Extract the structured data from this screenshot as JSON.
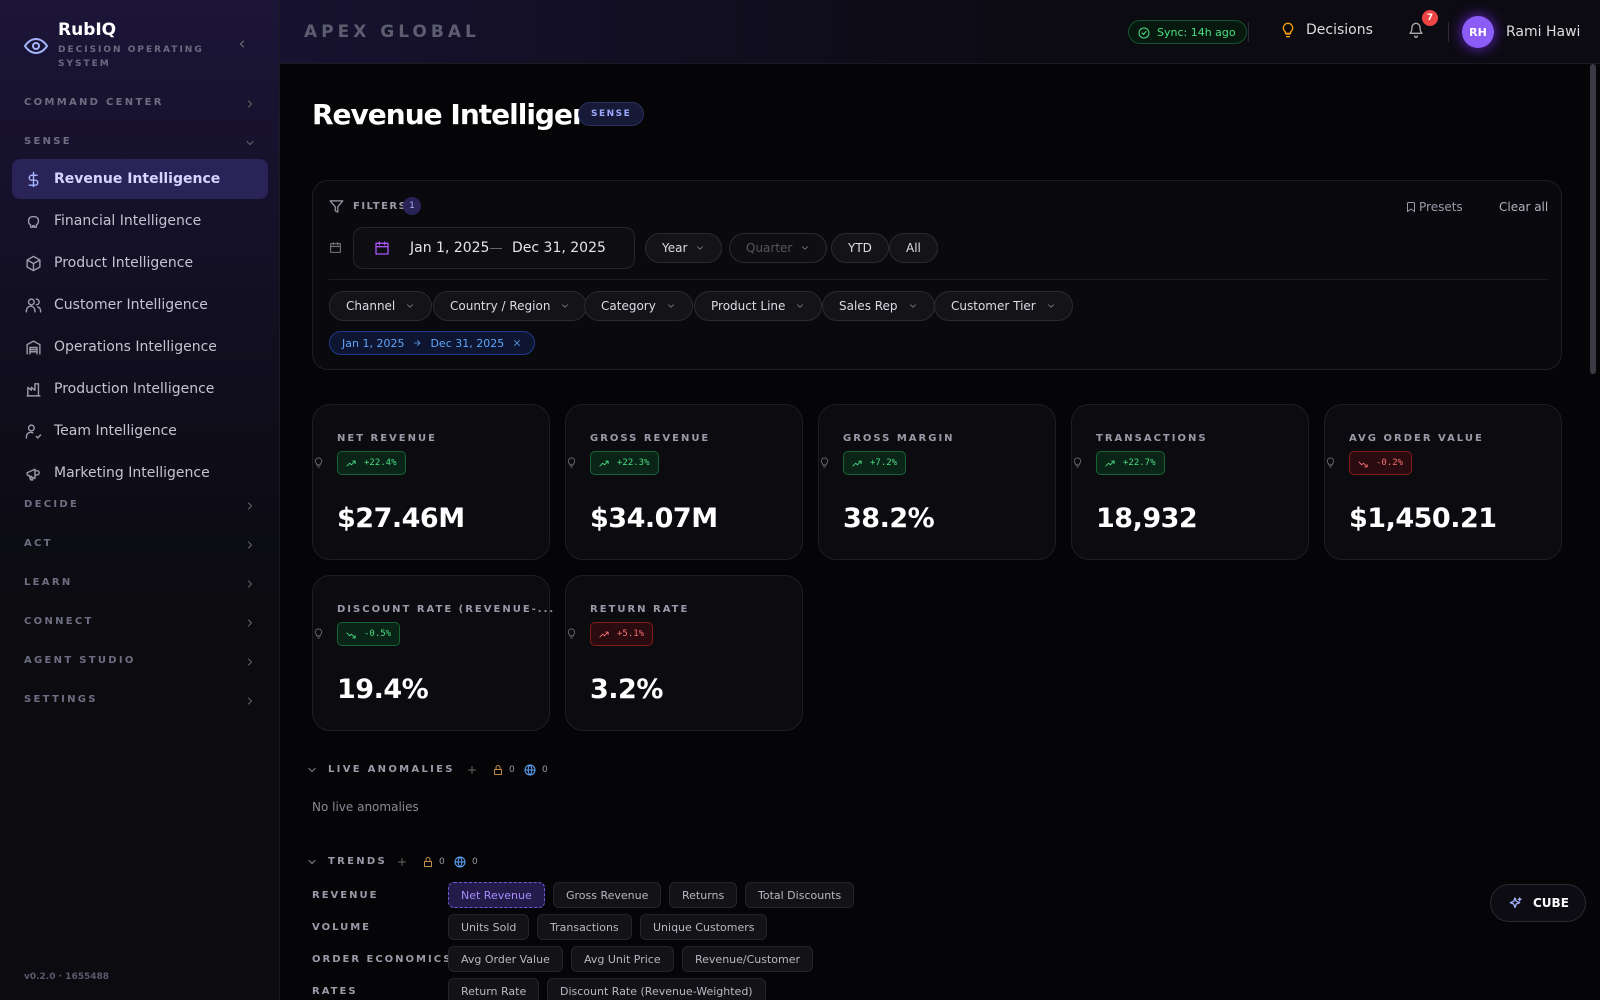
{
  "sidebar": {
    "brand": "RubIQ",
    "tagline": "DECISION OPERATING SYSTEM",
    "groups": [
      {
        "label": "COMMAND CENTER"
      },
      {
        "label": "SENSE",
        "active": 0,
        "items": [
          "Revenue Intelligence",
          "Financial Intelligence",
          "Product Intelligence",
          "Customer Intelligence",
          "Operations Intelligence",
          "Production Intelligence",
          "Team Intelligence",
          "Marketing Intelligence"
        ]
      },
      {
        "label": "DECIDE"
      },
      {
        "label": "ACT"
      },
      {
        "label": "LEARN"
      },
      {
        "label": "CONNECT"
      },
      {
        "label": "AGENT STUDIO"
      },
      {
        "label": "SETTINGS"
      }
    ],
    "version": "v0.2.0 · 1655488"
  },
  "topbar": {
    "org": "APEX GLOBAL",
    "sync": "Sync: 14h ago",
    "decisions": "Decisions",
    "notifications": "7",
    "avatar": "RH",
    "user": "Rami Hawi"
  },
  "header": {
    "title": "Revenue Intelligence",
    "badge": "SENSE"
  },
  "filters": {
    "label": "FILTERS",
    "count": "1",
    "presets": "Presets",
    "clear": "Clear all",
    "date_from": "Jan 1, 2025",
    "date_to": "Dec 31, 2025",
    "periods": [
      "Year",
      "Quarter",
      "YTD",
      "All"
    ],
    "dropdowns": [
      "Channel",
      "Country / Region",
      "Category",
      "Product Line",
      "Sales Rep",
      "Customer Tier"
    ],
    "chip": {
      "from": "Jan 1, 2025",
      "to": "Dec 31, 2025"
    }
  },
  "kpis": [
    {
      "label": "NET REVENUE",
      "change": "+22.4%",
      "direction": "up",
      "tone": "good",
      "value": "$27.46M"
    },
    {
      "label": "GROSS REVENUE",
      "change": "+22.3%",
      "direction": "up",
      "tone": "good",
      "value": "$34.07M"
    },
    {
      "label": "GROSS MARGIN",
      "change": "+7.2%",
      "direction": "up",
      "tone": "good",
      "value": "38.2%"
    },
    {
      "label": "TRANSACTIONS",
      "change": "+22.7%",
      "direction": "up",
      "tone": "good",
      "value": "18,932"
    },
    {
      "label": "AVG ORDER VALUE",
      "change": "-0.2%",
      "direction": "down",
      "tone": "bad",
      "value": "$1,450.21"
    },
    {
      "label": "DISCOUNT RATE (REVENUE-...",
      "change": "-0.5%",
      "direction": "down",
      "tone": "good",
      "value": "19.4%"
    },
    {
      "label": "RETURN RATE",
      "change": "+5.1%",
      "direction": "up",
      "tone": "bad",
      "value": "3.2%"
    }
  ],
  "anomalies": {
    "title": "LIVE ANOMALIES",
    "locked": "0",
    "global": "0",
    "empty": "No live anomalies"
  },
  "trends": {
    "title": "TRENDS",
    "locked": "0",
    "global": "0",
    "active": "0.0",
    "groups": [
      {
        "label": "REVENUE",
        "items": [
          "Net Revenue",
          "Gross Revenue",
          "Returns",
          "Total Discounts"
        ]
      },
      {
        "label": "VOLUME",
        "items": [
          "Units Sold",
          "Transactions",
          "Unique Customers"
        ]
      },
      {
        "label": "ORDER ECONOMICS",
        "items": [
          "Avg Order Value",
          "Avg Unit Price",
          "Revenue/Customer"
        ]
      },
      {
        "label": "RATES",
        "items": [
          "Return Rate",
          "Discount Rate (Revenue-Weighted)"
        ]
      }
    ]
  },
  "cube": "CUBE"
}
